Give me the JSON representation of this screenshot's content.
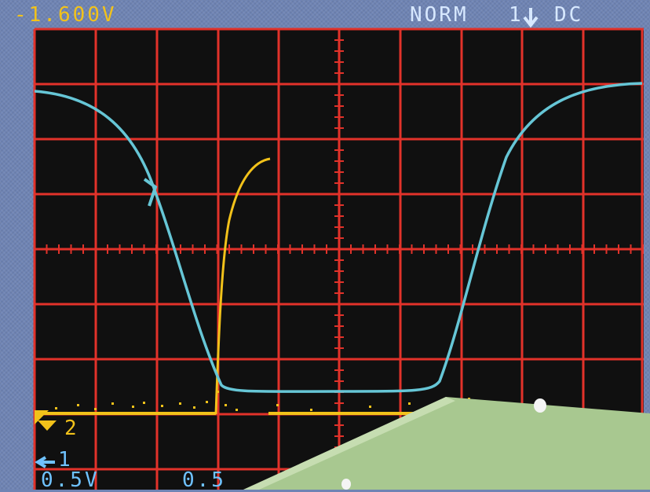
{
  "readouts": {
    "top_left": "-1.600V",
    "top_right_mode": "NORM",
    "top_right_marker": "1",
    "top_right_coupling": "DC",
    "ch2_marker": "2",
    "ch1_marker": "1",
    "bottom_left_scale": "0.5V",
    "bottom_mid_scale": "0.5"
  },
  "colors": {
    "background": "#6f84b4",
    "screen": "#101010",
    "grid": "#e2322a",
    "trace_ch1": "#66c6d6",
    "trace_ch2": "#f2c21a",
    "readout_top": "#d7e8ff",
    "readout_bottom": "#6fc2ff",
    "marker": "#f2c21a",
    "board": "#a8c890"
  },
  "icons": {
    "trigger": "trigger-arrow-icon",
    "ch1_ground": "ground-arrow-icon",
    "ch2_ground": "ground-triangle-icon"
  }
}
